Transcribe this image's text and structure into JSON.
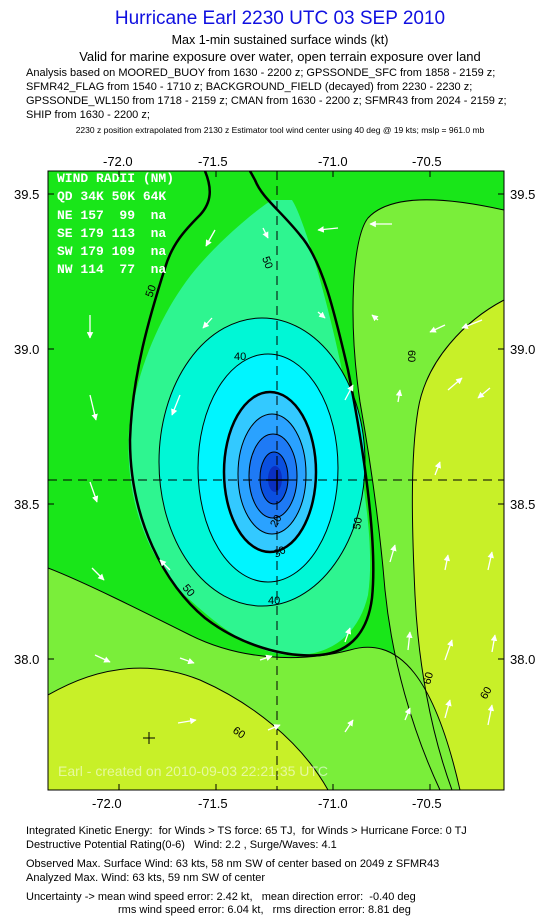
{
  "header": {
    "title": "Hurricane Earl 2230 UTC 03 SEP 2010",
    "subtitle1": "Max 1-min sustained surface winds (kt)",
    "subtitle2": "Valid for marine exposure over water, open terrain exposure over land",
    "analysis_lines": [
      "Analysis based on MOORED_BUOY from 1630 - 2200 z; GPSSONDE_SFC from 1858 - 2159 z;",
      "SFMR42_FLAG from 1540 - 1710 z; BACKGROUND_FIELD (decayed) from 2230 - 2230 z;",
      "GPSSONDE_WL150 from 1718 - 2159 z; CMAN from 1630 - 2200 z; SFMR43 from 2024 - 2159 z;",
      "SHIP from 1630 - 2200 z;"
    ],
    "position_note": "2230 z position extrapolated from 2130 z Estimator tool wind center using 40 deg @ 19 kts; mslp = 961.0 mb"
  },
  "map": {
    "lon_ticks": [
      "-72.0",
      "-71.5",
      "-71.0",
      "-70.5"
    ],
    "lat_ticks": [
      "39.5",
      "39.0",
      "38.5",
      "38.0"
    ],
    "center": {
      "lon": -71.25,
      "lat": 38.57
    },
    "wind_radii": {
      "title": "WIND RADII (NM)",
      "header": "QD 34K 50K 64K",
      "rows": [
        "NE 157  99  na",
        "SE 179 113  na",
        "SW 179 109  na",
        "NW 114  77  na"
      ]
    },
    "contour_labels": [
      "50",
      "50",
      "50",
      "50",
      "40",
      "40",
      "30",
      "20",
      "50",
      "60",
      "60",
      "60",
      "60"
    ],
    "credit": "Earl - created on 2010-09-03 22:21:35 UTC",
    "colors": {
      "bright_green": "#19e619",
      "light_green": "#7aee3a",
      "yellow_green": "#c8f028",
      "lime_yellow": "#dcf81a",
      "sea_green": "#2ef590",
      "aqua": "#00f7d6",
      "cyan": "#00f5ff",
      "core_blue": "#0a4fe0"
    }
  },
  "footer": {
    "ike": "Integrated Kinetic Energy:  for Winds > TS force: 65 TJ,  for Winds > Hurricane Force: 0 TJ",
    "dpr": "Destructive Potential Rating(0-6)   Wind: 2.2 , Surge/Waves: 4.1",
    "observed": "Observed Max. Surface Wind: 63 kts, 58 nm SW of center based on 2049 z SFMR43",
    "analyzed": "Analyzed Max. Wind: 63 kts, 59 nm SW of center",
    "uncertainty1": "Uncertainty -> mean wind speed error: 2.42 kt,   mean direction error:  -0.40 deg",
    "uncertainty2": "rms wind speed error: 6.04 kt,   rms direction error: 8.81 deg"
  }
}
